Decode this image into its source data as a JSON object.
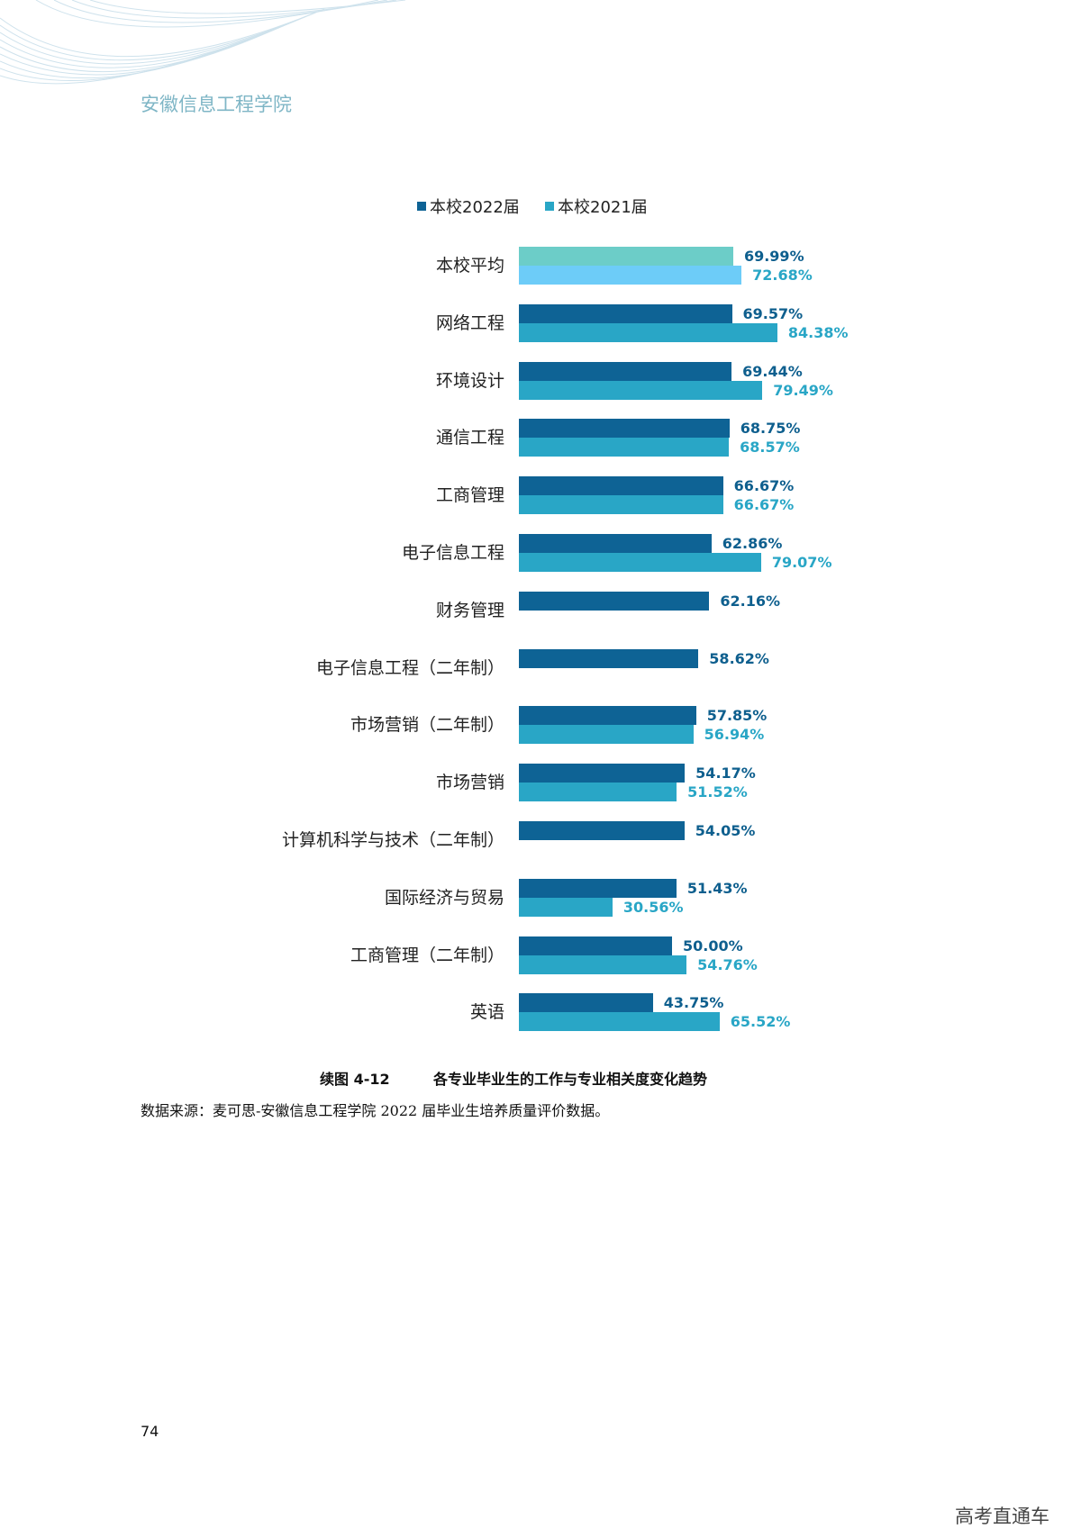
{
  "header": {
    "school_name": "安徽信息工程学院"
  },
  "chart_data": {
    "type": "bar",
    "orientation": "horizontal",
    "categories": [
      "本校平均",
      "网络工程",
      "环境设计",
      "通信工程",
      "工商管理",
      "电子信息工程",
      "财务管理",
      "电子信息工程（二年制）",
      "市场营销（二年制）",
      "市场营销",
      "计算机科学与技术（二年制）",
      "国际经济与贸易",
      "工商管理（二年制）",
      "英语"
    ],
    "series": [
      {
        "name": "本校2022届",
        "color": "#0e6395",
        "label_color": "#0e5f8e",
        "highlight_color": "#6ccdc8",
        "values": [
          69.99,
          69.57,
          69.44,
          68.75,
          66.67,
          62.86,
          62.16,
          58.62,
          57.85,
          54.17,
          54.05,
          51.43,
          50.0,
          43.75
        ],
        "labels": [
          "69.99%",
          "69.57%",
          "69.44%",
          "68.75%",
          "66.67%",
          "62.86%",
          "62.16%",
          "58.62%",
          "57.85%",
          "54.17%",
          "54.05%",
          "51.43%",
          "50.00%",
          "43.75%"
        ]
      },
      {
        "name": "本校2021届",
        "color": "#29a6c6",
        "label_color": "#29a6c6",
        "highlight_color": "#6dccf8",
        "values": [
          72.68,
          84.38,
          79.49,
          68.57,
          66.67,
          79.07,
          null,
          null,
          56.94,
          51.52,
          null,
          30.56,
          54.76,
          65.52
        ],
        "labels": [
          "72.68%",
          "84.38%",
          "79.49%",
          "68.57%",
          "66.67%",
          "79.07%",
          null,
          null,
          "56.94%",
          "51.52%",
          null,
          "30.56%",
          "54.76%",
          "65.52%"
        ]
      }
    ],
    "legend_placement": "top",
    "xlim": [
      0,
      100
    ],
    "grid": false
  },
  "caption": {
    "number": "续图 4-12",
    "title": "各专业毕业生的工作与专业相关度变化趋势"
  },
  "source": "数据来源：麦可思-安徽信息工程学院 2022 届毕业生培养质量评价数据。",
  "page_number": "74",
  "watermark": "高考直通车"
}
